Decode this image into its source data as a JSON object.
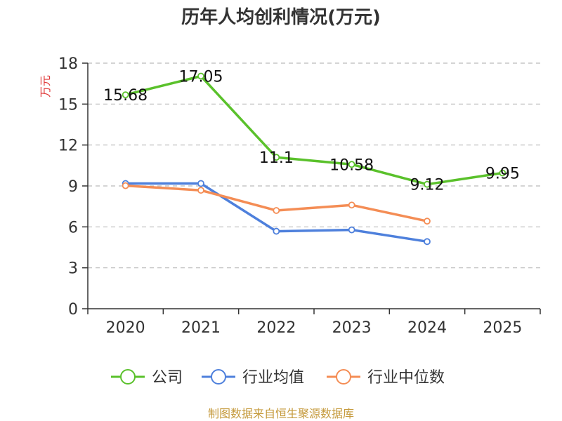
{
  "chart_data": {
    "type": "line",
    "title": "历年人均创利情况(万元)",
    "xlabel": "",
    "ylabel": "万元",
    "categories": [
      "2020",
      "2021",
      "2022",
      "2023",
      "2024",
      "2025"
    ],
    "ylim": [
      0,
      18
    ],
    "yticks": [
      0,
      3,
      6,
      9,
      12,
      15,
      18
    ],
    "grid": true,
    "legend_position": "bottom",
    "series": [
      {
        "name": "公司",
        "color": "#5ac12b",
        "values": [
          15.68,
          17.05,
          11.1,
          10.58,
          9.12,
          9.95
        ],
        "labels": [
          "15.68",
          "17.05",
          "11.1",
          "10.58",
          "9.12",
          "9.95"
        ]
      },
      {
        "name": "行业均值",
        "color": "#4e80dc",
        "values": [
          9.18,
          9.18,
          5.68,
          5.78,
          4.92,
          null
        ]
      },
      {
        "name": "行业中位数",
        "color": "#f48d55",
        "values": [
          9.02,
          8.68,
          7.2,
          7.6,
          6.42,
          null
        ]
      }
    ]
  },
  "colors": {
    "ylabel": "#e03a3a",
    "footer": "#c59a3c",
    "axis": "#333333",
    "grid": "#bbbbbb"
  },
  "footer": "制图数据来自恒生聚源数据库"
}
